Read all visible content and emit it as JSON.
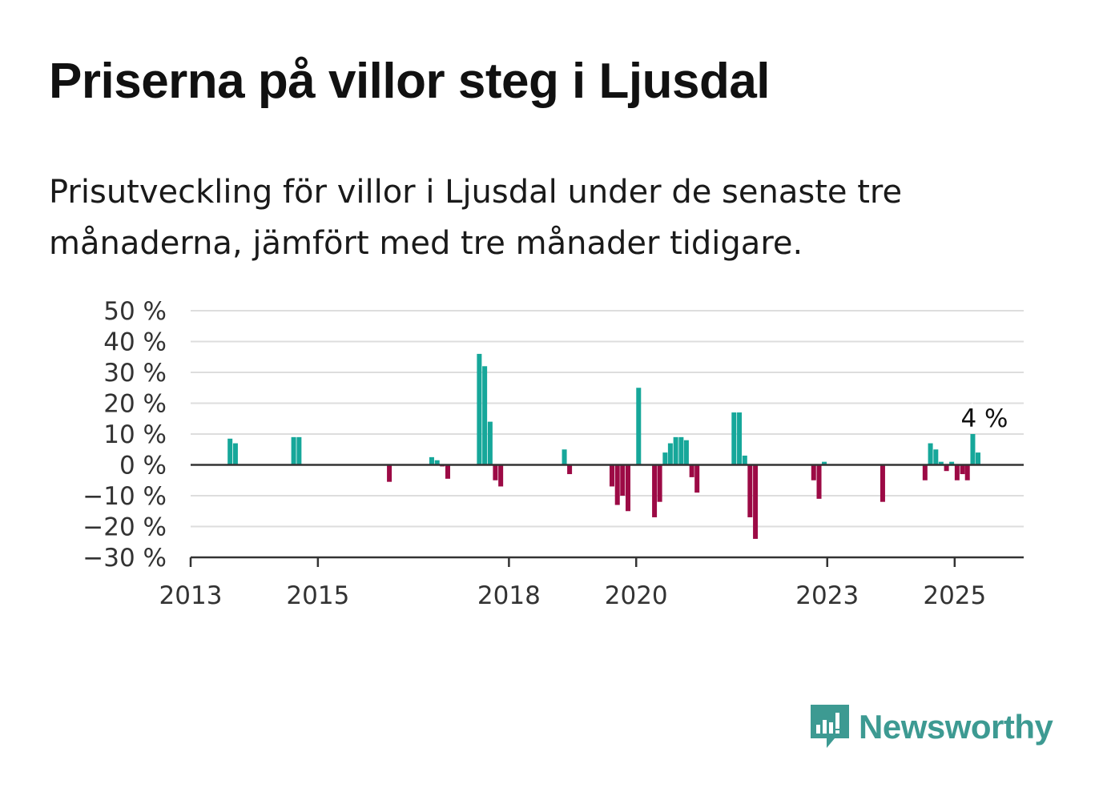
{
  "title": "Priserna på villor steg i Ljusdal",
  "subtitle": "Prisutveckling för villor i Ljusdal under de senaste tre månaderna, jämfört med tre månader tidigare.",
  "brand": {
    "name": "Newsworthy",
    "color": "#3d9a92",
    "icon": "newsworthy-bar-icon"
  },
  "colors": {
    "positive": "#16a79a",
    "negative": "#9c0a45",
    "grid": "#dddddd",
    "axis": "#333333"
  },
  "chart_data": {
    "type": "bar",
    "title": "",
    "xlabel": "",
    "ylabel": "",
    "ylim": [
      -30,
      50
    ],
    "xlim": [
      "2013-01-01",
      "2026-02-01"
    ],
    "y_ticks": [
      50,
      40,
      30,
      20,
      10,
      0,
      -10,
      -20,
      -30
    ],
    "y_tick_labels": [
      "50 %",
      "40 %",
      "30 %",
      "20 %",
      "10 %",
      "0 %",
      "−10 %",
      "−20 %",
      "−30 %"
    ],
    "x_ticks": [
      "2013-01-01",
      "2015-01-01",
      "2018-01-01",
      "2020-01-01",
      "2023-01-01",
      "2025-01-01"
    ],
    "x_tick_labels": [
      "2013",
      "2015",
      "2018",
      "2020",
      "2023",
      "2025"
    ],
    "grid": true,
    "legend": "none",
    "annotation": {
      "text": "4 %",
      "date": "2025-05",
      "value": 4
    },
    "series": [
      {
        "points": [
          [
            "2013-08",
            8.5
          ],
          [
            "2013-09",
            7
          ],
          [
            "2014-08",
            9
          ],
          [
            "2014-09",
            9
          ],
          [
            "2016-02",
            -5.5
          ],
          [
            "2016-10",
            2.5
          ],
          [
            "2016-11",
            1.5
          ],
          [
            "2016-12",
            -0.5
          ],
          [
            "2017-01",
            -4.5
          ],
          [
            "2017-07",
            36
          ],
          [
            "2017-08",
            32
          ],
          [
            "2017-09",
            14
          ],
          [
            "2017-10",
            -5
          ],
          [
            "2017-11",
            -7
          ],
          [
            "2018-11",
            5
          ],
          [
            "2018-12",
            -3
          ],
          [
            "2019-08",
            -7
          ],
          [
            "2019-09",
            -13
          ],
          [
            "2019-10",
            -10
          ],
          [
            "2019-11",
            -15
          ],
          [
            "2020-01",
            25
          ],
          [
            "2020-04",
            -17
          ],
          [
            "2020-05",
            -12
          ],
          [
            "2020-06",
            4
          ],
          [
            "2020-07",
            7
          ],
          [
            "2020-08",
            9
          ],
          [
            "2020-09",
            9
          ],
          [
            "2020-10",
            8
          ],
          [
            "2020-11",
            -4
          ],
          [
            "2020-12",
            -9
          ],
          [
            "2021-07",
            17
          ],
          [
            "2021-08",
            17
          ],
          [
            "2021-09",
            3
          ],
          [
            "2021-10",
            -17
          ],
          [
            "2021-11",
            -24
          ],
          [
            "2022-10",
            -5
          ],
          [
            "2022-11",
            -11
          ],
          [
            "2022-12",
            1
          ],
          [
            "2023-11",
            -12
          ],
          [
            "2024-07",
            -5
          ],
          [
            "2024-08",
            7
          ],
          [
            "2024-09",
            5
          ],
          [
            "2024-10",
            1
          ],
          [
            "2024-11",
            -2
          ],
          [
            "2024-12",
            1
          ],
          [
            "2025-01",
            -5
          ],
          [
            "2025-02",
            -3
          ],
          [
            "2025-03",
            -5
          ],
          [
            "2025-04",
            10
          ],
          [
            "2025-05",
            4
          ]
        ]
      }
    ]
  }
}
